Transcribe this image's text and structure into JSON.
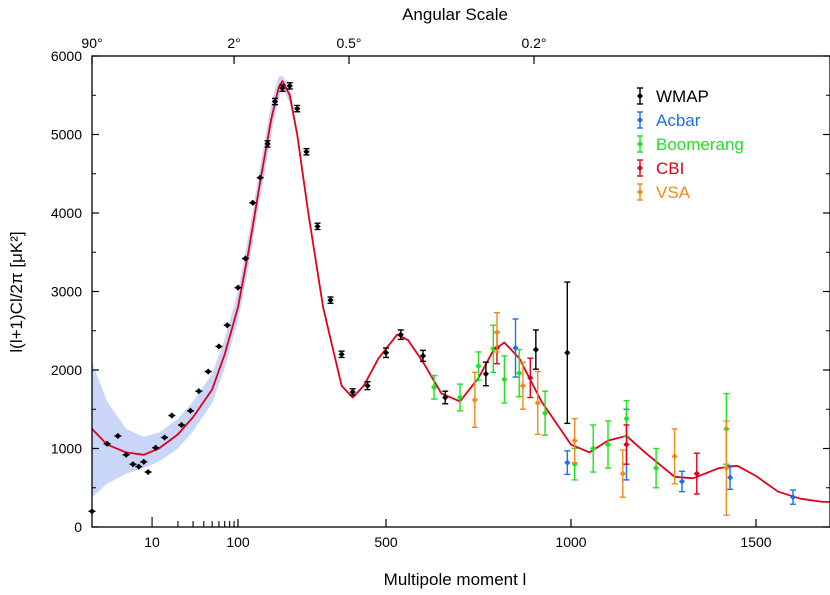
{
  "chart_data": {
    "type": "scatter",
    "title": "",
    "top_axis": {
      "title": "Angular Scale",
      "ticks": [
        {
          "label": "90°",
          "l": 2
        },
        {
          "label": "2°",
          "l": 90
        },
        {
          "label": "0.5°",
          "l": 400
        },
        {
          "label": "0.2°",
          "l": 900
        }
      ]
    },
    "xlabel": "Multipole moment  l",
    "ylabel": "l(l+1)Cl/2π [μK²]",
    "x_scale": "log below l=100, linear above",
    "xlim": [
      2,
      1700
    ],
    "ylim": [
      0,
      6000
    ],
    "x_tick_labels": [
      {
        "label": "10",
        "l": 10
      },
      {
        "label": "100",
        "l": 100
      },
      {
        "label": "500",
        "l": 500
      },
      {
        "label": "1000",
        "l": 1000
      },
      {
        "label": "1500",
        "l": 1500
      }
    ],
    "y_ticks": [
      0,
      1000,
      2000,
      3000,
      4000,
      5000,
      6000
    ],
    "legend_position": "top-right",
    "colors": {
      "model": "#e0001a",
      "band": "#c9d6f7",
      "WMAP": "#000000",
      "Acbar": "#1f6fe6",
      "Boomerang": "#22e022",
      "CBI": "#e0001a",
      "VSA": "#f08a1c"
    },
    "model_curve": {
      "l": [
        2,
        3,
        5,
        8,
        12,
        20,
        30,
        50,
        70,
        100,
        130,
        160,
        190,
        210,
        220,
        240,
        260,
        290,
        330,
        380,
        410,
        440,
        480,
        530,
        560,
        600,
        650,
        700,
        750,
        790,
        820,
        860,
        920,
        1000,
        1050,
        1100,
        1150,
        1200,
        1280,
        1330,
        1400,
        1450,
        1500,
        1560,
        1620,
        1680,
        1700
      ],
      "value": [
        1250,
        1050,
        950,
        920,
        1000,
        1180,
        1400,
        1750,
        2200,
        2800,
        3550,
        4400,
        5200,
        5600,
        5680,
        5500,
        5000,
        4000,
        2800,
        1800,
        1650,
        1800,
        2150,
        2450,
        2380,
        2100,
        1700,
        1600,
        1900,
        2250,
        2350,
        2150,
        1600,
        1050,
        950,
        1100,
        1160,
        950,
        640,
        620,
        750,
        780,
        650,
        450,
        360,
        320,
        320
      ]
    },
    "band_upper": {
      "l": [
        2,
        3,
        5,
        8,
        12,
        20,
        30,
        50,
        70,
        100,
        130,
        160,
        190,
        210,
        220,
        240,
        260,
        290,
        330,
        380
      ],
      "value": [
        2100,
        1600,
        1250,
        1150,
        1200,
        1380,
        1600,
        1950,
        2400,
        3000,
        3750,
        4600,
        5400,
        5740,
        5750,
        5600,
        5050,
        4050,
        2850,
        1830
      ]
    },
    "band_lower": {
      "l": [
        2,
        3,
        5,
        8,
        12,
        20,
        30,
        50,
        70,
        100,
        130,
        160,
        190,
        210,
        220,
        240,
        260,
        290,
        330,
        380
      ],
      "value": [
        380,
        550,
        680,
        750,
        830,
        1000,
        1220,
        1580,
        2020,
        2620,
        3350,
        4200,
        5000,
        5450,
        5600,
        5400,
        4950,
        3950,
        2750,
        1770
      ]
    },
    "series": [
      {
        "name": "WMAP",
        "points": [
          {
            "l": 2,
            "value": 200,
            "err": 0
          },
          {
            "l": 3,
            "value": 1060,
            "err": 0
          },
          {
            "l": 4,
            "value": 1160,
            "err": 0
          },
          {
            "l": 5,
            "value": 920,
            "err": 0
          },
          {
            "l": 6,
            "value": 800,
            "err": 0
          },
          {
            "l": 7,
            "value": 770,
            "err": 0
          },
          {
            "l": 8,
            "value": 830,
            "err": 0
          },
          {
            "l": 9,
            "value": 700,
            "err": 0
          },
          {
            "l": 11,
            "value": 1010,
            "err": 0
          },
          {
            "l": 14,
            "value": 1140,
            "err": 0
          },
          {
            "l": 17,
            "value": 1420,
            "err": 0
          },
          {
            "l": 22,
            "value": 1300,
            "err": 0
          },
          {
            "l": 28,
            "value": 1480,
            "err": 0
          },
          {
            "l": 35,
            "value": 1730,
            "err": 0
          },
          {
            "l": 45,
            "value": 1980,
            "err": 0
          },
          {
            "l": 60,
            "value": 2300,
            "err": 0
          },
          {
            "l": 75,
            "value": 2570,
            "err": 0
          },
          {
            "l": 100,
            "value": 3050,
            "err": 0
          },
          {
            "l": 120,
            "value": 3420,
            "err": 0
          },
          {
            "l": 140,
            "value": 4130,
            "err": 0
          },
          {
            "l": 160,
            "value": 4450,
            "err": 0
          },
          {
            "l": 180,
            "value": 4880,
            "err": 40
          },
          {
            "l": 200,
            "value": 5420,
            "err": 40
          },
          {
            "l": 220,
            "value": 5590,
            "err": 40
          },
          {
            "l": 240,
            "value": 5620,
            "err": 40
          },
          {
            "l": 260,
            "value": 5330,
            "err": 40
          },
          {
            "l": 285,
            "value": 4780,
            "err": 40
          },
          {
            "l": 315,
            "value": 3830,
            "err": 40
          },
          {
            "l": 350,
            "value": 2890,
            "err": 40
          },
          {
            "l": 380,
            "value": 2200,
            "err": 40
          },
          {
            "l": 410,
            "value": 1720,
            "err": 40
          },
          {
            "l": 450,
            "value": 1800,
            "err": 50
          },
          {
            "l": 500,
            "value": 2220,
            "err": 60
          },
          {
            "l": 540,
            "value": 2450,
            "err": 60
          },
          {
            "l": 600,
            "value": 2180,
            "err": 70
          },
          {
            "l": 660,
            "value": 1650,
            "err": 80
          },
          {
            "l": 770,
            "value": 1950,
            "err": 150
          },
          {
            "l": 905,
            "value": 2260,
            "err": 250
          },
          {
            "l": 990,
            "value": 2220,
            "err": 900
          }
        ]
      },
      {
        "name": "Acbar",
        "points": [
          {
            "l": 850,
            "value": 2280,
            "err": 370
          },
          {
            "l": 990,
            "value": 820,
            "err": 150
          },
          {
            "l": 1150,
            "value": 1050,
            "err": 450
          },
          {
            "l": 1300,
            "value": 580,
            "err": 130
          },
          {
            "l": 1430,
            "value": 630,
            "err": 150
          },
          {
            "l": 1600,
            "value": 380,
            "err": 90
          }
        ]
      },
      {
        "name": "Boomerang",
        "points": [
          {
            "l": 630,
            "value": 1780,
            "err": 150
          },
          {
            "l": 700,
            "value": 1650,
            "err": 170
          },
          {
            "l": 750,
            "value": 2050,
            "err": 180
          },
          {
            "l": 790,
            "value": 2270,
            "err": 300
          },
          {
            "l": 820,
            "value": 1880,
            "err": 300
          },
          {
            "l": 860,
            "value": 1960,
            "err": 300
          },
          {
            "l": 930,
            "value": 1450,
            "err": 280
          },
          {
            "l": 1010,
            "value": 800,
            "err": 200
          },
          {
            "l": 1060,
            "value": 1000,
            "err": 300
          },
          {
            "l": 1100,
            "value": 1050,
            "err": 300
          },
          {
            "l": 1150,
            "value": 1380,
            "err": 230
          },
          {
            "l": 1230,
            "value": 750,
            "err": 250
          },
          {
            "l": 1420,
            "value": 1250,
            "err": 450
          }
        ]
      },
      {
        "name": "CBI",
        "points": [
          {
            "l": 800,
            "value": 2280,
            "err": 200
          },
          {
            "l": 890,
            "value": 1900,
            "err": 250
          },
          {
            "l": 1150,
            "value": 1050,
            "err": 250
          },
          {
            "l": 1340,
            "value": 680,
            "err": 260
          }
        ]
      },
      {
        "name": "VSA",
        "points": [
          {
            "l": 740,
            "value": 1620,
            "err": 350
          },
          {
            "l": 800,
            "value": 2480,
            "err": 250
          },
          {
            "l": 870,
            "value": 1800,
            "err": 300
          },
          {
            "l": 910,
            "value": 1580,
            "err": 400
          },
          {
            "l": 1010,
            "value": 1100,
            "err": 280
          },
          {
            "l": 1140,
            "value": 680,
            "err": 300
          },
          {
            "l": 1280,
            "value": 900,
            "err": 350
          },
          {
            "l": 1420,
            "value": 750,
            "err": 600
          }
        ]
      }
    ]
  }
}
